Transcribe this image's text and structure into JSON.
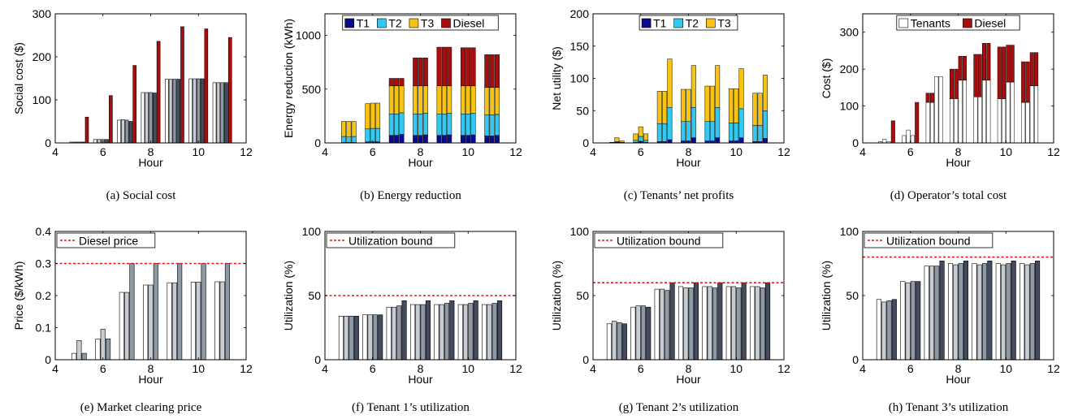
{
  "colors": {
    "t1": "#0a0a8c",
    "t2": "#33c8ef",
    "t3": "#f7c416",
    "diesel": "#a80e0e",
    "bar_white": "#ffffff",
    "bar_light": "#c6ccd2",
    "bar_mid": "#8e99a6",
    "bar_dark": "#454b5e",
    "ref_line": "#e21616"
  },
  "chart_data": [
    {
      "id": "a",
      "type": "bar",
      "caption": "(a) Social cost",
      "xlabel": "Hour",
      "ylabel": "Social cost ($)",
      "xlim": [
        4,
        12
      ],
      "ylim": [
        0,
        300
      ],
      "xticks": [
        "4",
        "6",
        "8",
        "10",
        "12"
      ],
      "yticks": [
        "0",
        "100",
        "200",
        "300"
      ],
      "x": [
        5,
        6,
        7,
        8,
        9,
        10,
        11
      ],
      "series": [
        {
          "values": [
            2,
            8,
            53,
            117,
            148,
            149,
            140
          ]
        },
        {
          "values": [
            2,
            8,
            54,
            117,
            148,
            149,
            140
          ]
        },
        {
          "values": [
            2,
            8,
            53,
            117,
            148,
            149,
            140
          ]
        },
        {
          "values": [
            2,
            8,
            50,
            116,
            148,
            149,
            140
          ]
        },
        {
          "values": [
            60,
            110,
            180,
            236,
            270,
            265,
            245
          ]
        }
      ]
    },
    {
      "id": "b",
      "type": "bar-stacked",
      "caption": "(b) Energy reduction",
      "xlabel": "Hour",
      "ylabel": "Energy reduction (kWh)",
      "xlim": [
        4,
        12
      ],
      "ylim": [
        0,
        1200
      ],
      "xticks": [
        "4",
        "6",
        "8",
        "10",
        "12"
      ],
      "yticks": [
        "0",
        "500",
        "1000"
      ],
      "legend": {
        "entries": [
          "T1",
          "T2",
          "T3",
          "Diesel"
        ],
        "position": "top"
      },
      "x": [
        5,
        6,
        7,
        8,
        9,
        10,
        11
      ],
      "groups": [
        [
          [
            5,
            55,
            140,
            0
          ],
          [
            5,
            50,
            145,
            0
          ],
          [
            5,
            55,
            140,
            0
          ]
        ],
        [
          [
            10,
            120,
            235,
            0
          ],
          [
            10,
            125,
            235,
            0
          ],
          [
            10,
            125,
            235,
            0
          ]
        ],
        [
          [
            70,
            200,
            260,
            70
          ],
          [
            70,
            200,
            260,
            70
          ],
          [
            80,
            200,
            250,
            70
          ]
        ],
        [
          [
            70,
            200,
            260,
            260
          ],
          [
            70,
            200,
            260,
            260
          ],
          [
            75,
            200,
            255,
            260
          ]
        ],
        [
          [
            70,
            200,
            260,
            360
          ],
          [
            70,
            200,
            260,
            360
          ],
          [
            75,
            200,
            255,
            360
          ]
        ],
        [
          [
            70,
            200,
            260,
            355
          ],
          [
            70,
            200,
            260,
            355
          ],
          [
            75,
            200,
            255,
            355
          ]
        ],
        [
          [
            65,
            195,
            255,
            305
          ],
          [
            65,
            195,
            255,
            305
          ],
          [
            70,
            195,
            250,
            305
          ]
        ]
      ]
    },
    {
      "id": "c",
      "type": "bar-stacked",
      "caption": "(c) Tenants’ net profits",
      "xlabel": "Hour",
      "ylabel": "Net utility ($)",
      "xlim": [
        4,
        12
      ],
      "ylim": [
        0,
        200
      ],
      "xticks": [
        "4",
        "6",
        "8",
        "10",
        "12"
      ],
      "yticks": [
        "0",
        "50",
        "100",
        "150",
        "200"
      ],
      "legend": {
        "entries": [
          "T1",
          "T2",
          "T3"
        ],
        "position": "top"
      },
      "x": [
        5,
        6,
        7,
        8,
        9,
        10,
        11
      ],
      "groups": [
        [
          [
            0,
            0,
            1
          ],
          [
            1,
            1,
            6
          ],
          [
            0,
            1,
            2
          ]
        ],
        [
          [
            1,
            3,
            10
          ],
          [
            2,
            8,
            15
          ],
          [
            1,
            3,
            10
          ]
        ],
        [
          [
            2,
            28,
            50
          ],
          [
            2,
            28,
            50
          ],
          [
            5,
            50,
            75
          ]
        ],
        [
          [
            3,
            30,
            50
          ],
          [
            3,
            30,
            50
          ],
          [
            8,
            47,
            65
          ]
        ],
        [
          [
            3,
            30,
            55
          ],
          [
            3,
            30,
            55
          ],
          [
            8,
            47,
            65
          ]
        ],
        [
          [
            3,
            28,
            53
          ],
          [
            3,
            28,
            53
          ],
          [
            8,
            45,
            62
          ]
        ],
        [
          [
            2,
            25,
            50
          ],
          [
            2,
            25,
            50
          ],
          [
            7,
            43,
            55
          ]
        ]
      ]
    },
    {
      "id": "d",
      "type": "bar-stacked",
      "caption": "(d) Operator’s total cost",
      "xlabel": "Hour",
      "ylabel": "Cost ($)",
      "xlim": [
        4,
        12
      ],
      "ylim": [
        0,
        350
      ],
      "xticks": [
        "4",
        "6",
        "8",
        "10",
        "12"
      ],
      "yticks": [
        "0",
        "100",
        "200",
        "300"
      ],
      "legend": {
        "entries": [
          "Tenants",
          "Diesel"
        ],
        "position": "top"
      },
      "x": [
        5,
        6,
        7,
        8,
        9,
        10,
        11
      ],
      "groups": [
        [
          [
            3,
            0
          ],
          [
            10,
            0
          ],
          [
            3,
            0
          ],
          [
            0,
            60
          ]
        ],
        [
          [
            20,
            0
          ],
          [
            35,
            0
          ],
          [
            20,
            0
          ],
          [
            0,
            110
          ]
        ],
        [
          [
            110,
            25
          ],
          [
            110,
            25
          ],
          [
            180,
            0
          ],
          [
            180,
            0
          ]
        ],
        [
          [
            120,
            80
          ],
          [
            120,
            80
          ],
          [
            170,
            65
          ],
          [
            170,
            65
          ]
        ],
        [
          [
            125,
            115
          ],
          [
            125,
            115
          ],
          [
            170,
            100
          ],
          [
            170,
            100
          ]
        ],
        [
          [
            120,
            140
          ],
          [
            120,
            140
          ],
          [
            165,
            100
          ],
          [
            165,
            100
          ]
        ],
        [
          [
            110,
            110
          ],
          [
            110,
            110
          ],
          [
            155,
            90
          ],
          [
            155,
            90
          ]
        ]
      ]
    },
    {
      "id": "e",
      "type": "bar",
      "caption": "(e) Market clearing price",
      "xlabel": "Hour",
      "ylabel": "Price ($/kWh)",
      "xlim": [
        4,
        12
      ],
      "ylim": [
        0,
        0.4
      ],
      "xticks": [
        "4",
        "6",
        "8",
        "10",
        "12"
      ],
      "yticks": [
        "0",
        "0.1",
        "0.2",
        "0.3",
        "0.4"
      ],
      "reference_line": {
        "label": "Diesel price",
        "y": 0.3
      },
      "x": [
        5,
        6,
        7,
        8,
        9,
        10,
        11
      ],
      "series": [
        {
          "values": [
            0.02,
            0.065,
            0.21,
            0.233,
            0.24,
            0.242,
            0.243
          ]
        },
        {
          "values": [
            0.06,
            0.095,
            0.21,
            0.233,
            0.24,
            0.242,
            0.243
          ]
        },
        {
          "values": [
            0.02,
            0.065,
            0.3,
            0.3,
            0.3,
            0.3,
            0.3
          ]
        }
      ]
    },
    {
      "id": "f",
      "type": "bar",
      "caption": "(f) Tenant 1’s utilization",
      "xlabel": "Hour",
      "ylabel": "Utilization (%)",
      "xlim": [
        4,
        12
      ],
      "ylim": [
        0,
        100
      ],
      "xticks": [
        "4",
        "6",
        "8",
        "10",
        "12"
      ],
      "yticks": [
        "0",
        "50",
        "100"
      ],
      "reference_line": {
        "label": "Utilization bound",
        "y": 50
      },
      "x": [
        5,
        6,
        7,
        8,
        9,
        10,
        11
      ],
      "series": [
        {
          "values": [
            34,
            35,
            41,
            43,
            43,
            43,
            43
          ]
        },
        {
          "values": [
            34,
            35,
            41,
            43,
            43,
            43,
            43
          ]
        },
        {
          "values": [
            34,
            35,
            42,
            43,
            44,
            44,
            44
          ]
        },
        {
          "values": [
            34,
            35,
            46,
            46,
            46,
            46,
            46
          ]
        }
      ]
    },
    {
      "id": "g",
      "type": "bar",
      "caption": "(g) Tenant 2’s utilization",
      "xlabel": "Hour",
      "ylabel": "Utilization (%)",
      "xlim": [
        4,
        12
      ],
      "ylim": [
        0,
        100
      ],
      "xticks": [
        "4",
        "6",
        "8",
        "10",
        "12"
      ],
      "yticks": [
        "0",
        "50",
        "100"
      ],
      "reference_line": {
        "label": "Utilization bound",
        "y": 60
      },
      "x": [
        5,
        6,
        7,
        8,
        9,
        10,
        11
      ],
      "series": [
        {
          "values": [
            28,
            41,
            55,
            57,
            57,
            57,
            57
          ]
        },
        {
          "values": [
            30,
            42,
            55,
            56,
            57,
            57,
            57
          ]
        },
        {
          "values": [
            29,
            42,
            54,
            56,
            56,
            56,
            56
          ]
        },
        {
          "values": [
            28,
            41,
            60,
            60,
            60,
            60,
            60
          ]
        }
      ]
    },
    {
      "id": "h",
      "type": "bar",
      "caption": "(h) Tenant 3’s utilization",
      "xlabel": "Hour",
      "ylabel": "Utilization (%)",
      "xlim": [
        4,
        12
      ],
      "ylim": [
        0,
        100
      ],
      "xticks": [
        "4",
        "6",
        "8",
        "10",
        "12"
      ],
      "yticks": [
        "0",
        "50",
        "100"
      ],
      "reference_line": {
        "label": "Utilization bound",
        "y": 80
      },
      "x": [
        5,
        6,
        7,
        8,
        9,
        10,
        11
      ],
      "series": [
        {
          "values": [
            47,
            61,
            73,
            75,
            75,
            75,
            75
          ]
        },
        {
          "values": [
            45,
            60,
            73,
            74,
            74,
            74,
            74
          ]
        },
        {
          "values": [
            46,
            61,
            73,
            75,
            75,
            75,
            75
          ]
        },
        {
          "values": [
            47,
            61,
            77,
            77,
            77,
            77,
            77
          ]
        }
      ]
    }
  ]
}
